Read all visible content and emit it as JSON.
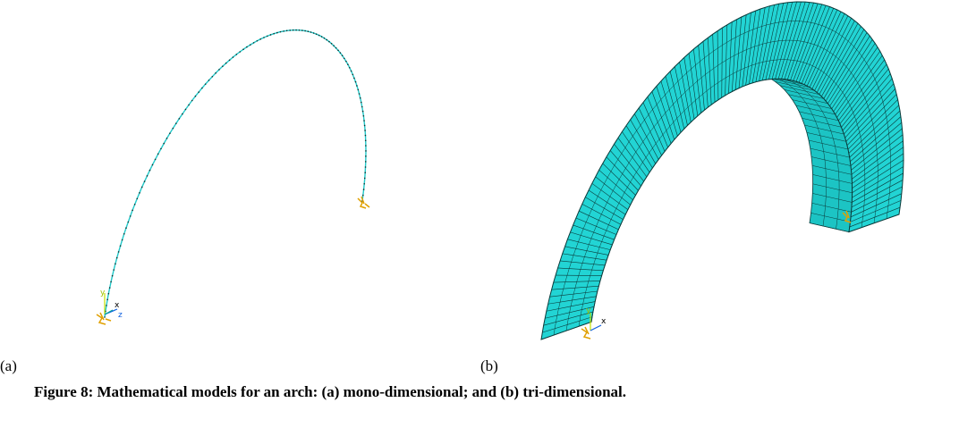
{
  "panels": [
    {
      "label": "(a)",
      "axes": [
        "x",
        "y",
        "z"
      ]
    },
    {
      "label": "(b)",
      "axes": [
        "y",
        "x"
      ]
    }
  ],
  "caption": "Figure 8: Mathematical models for an arch: (a) mono-dimensional; and (b) tri-dimensional."
}
